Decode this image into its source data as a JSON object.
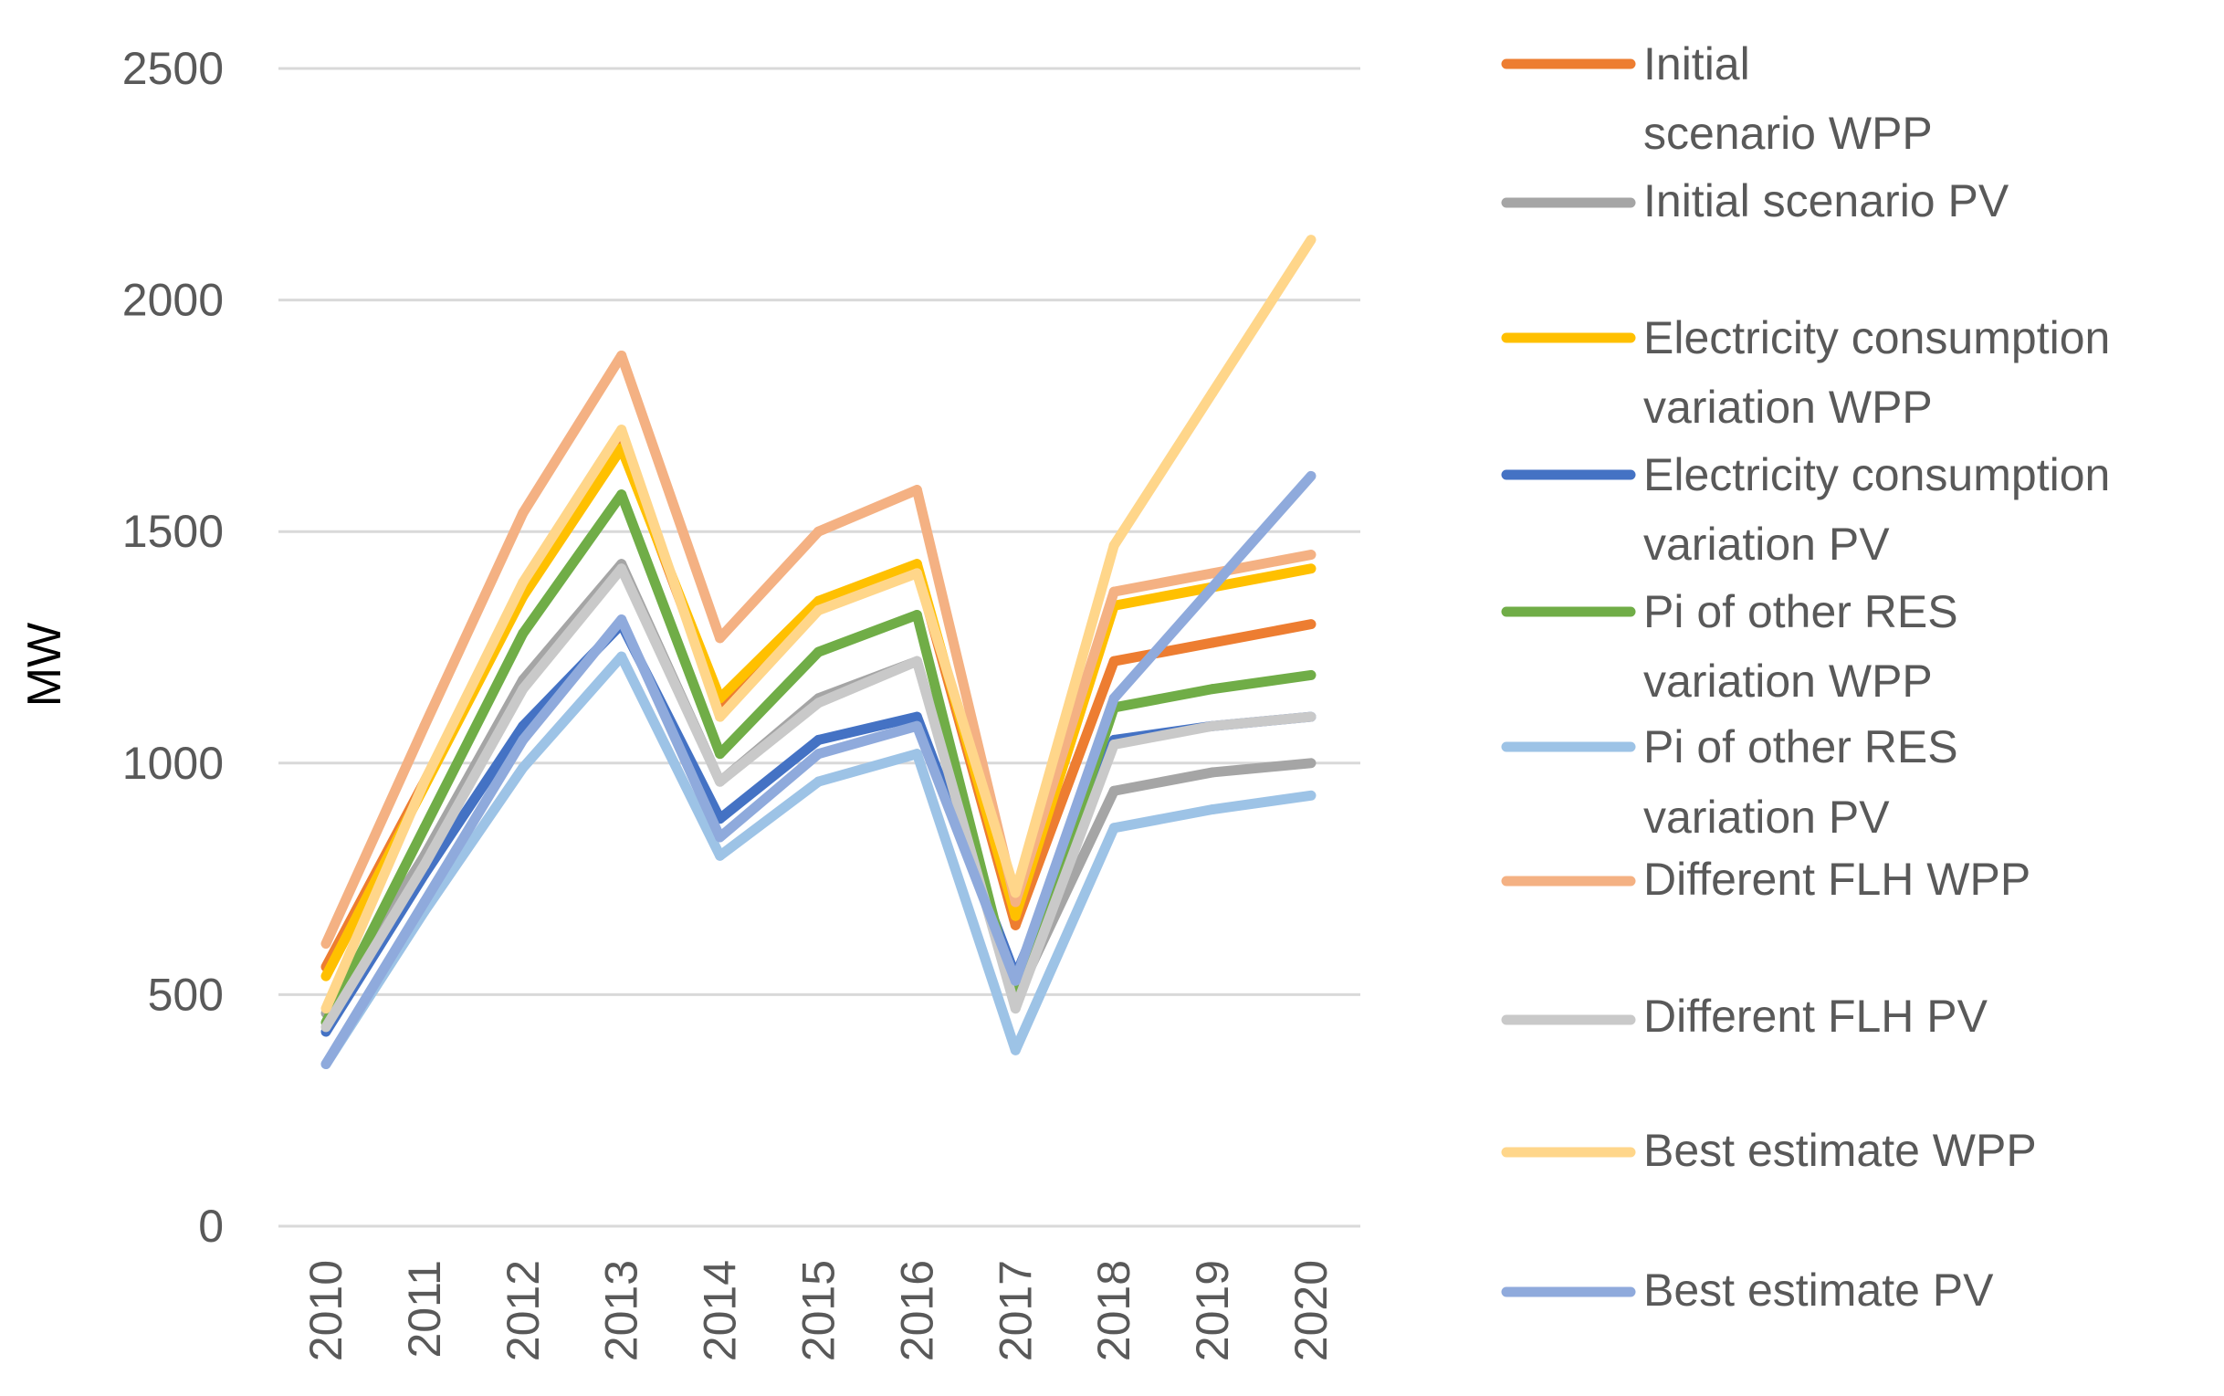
{
  "chart_data": {
    "type": "line",
    "title": "",
    "xlabel": "",
    "ylabel": "MW",
    "ylim": [
      0,
      2500
    ],
    "yticks": [
      0,
      500,
      1000,
      1500,
      2000,
      2500
    ],
    "grid": true,
    "legend_position": "right",
    "categories": [
      "2010",
      "2011",
      "2012",
      "2013",
      "2014",
      "2015",
      "2016",
      "2017",
      "2018",
      "2019",
      "2020"
    ],
    "series": [
      {
        "name": "Initial scenario WPP",
        "legend_lines": [
          "Initial",
          "scenario WPP"
        ],
        "color": "#ED7D31",
        "values": [
          560,
          960,
          1370,
          1690,
          1120,
          1340,
          1420,
          650,
          1220,
          1260,
          1300
        ]
      },
      {
        "name": "Initial scenario PV",
        "legend_lines": [
          "Initial scenario PV"
        ],
        "color": "#A5A5A5",
        "values": [
          460,
          800,
          1180,
          1430,
          960,
          1140,
          1220,
          490,
          940,
          980,
          1000
        ]
      },
      {
        "name": "Electricity consumption variation WPP",
        "legend_lines": [
          "Electricity consumption",
          "variation WPP"
        ],
        "color": "#FFC000",
        "values": [
          540,
          950,
          1360,
          1680,
          1140,
          1350,
          1430,
          670,
          1340,
          1380,
          1420
        ]
      },
      {
        "name": "Electricity consumption variation PV",
        "legend_lines": [
          "Electricity consumption",
          "variation PV"
        ],
        "color": "#4472C4",
        "values": [
          420,
          760,
          1080,
          1300,
          880,
          1050,
          1100,
          540,
          1050,
          1080,
          1100
        ]
      },
      {
        "name": "Pi of other RES variation WPP",
        "legend_lines": [
          "Pi of other RES",
          "variation WPP"
        ],
        "color": "#70AD47",
        "values": [
          440,
          860,
          1280,
          1580,
          1020,
          1240,
          1320,
          480,
          1120,
          1160,
          1190
        ]
      },
      {
        "name": "Pi of other RES variation PV",
        "legend_lines": [
          "Pi of other RES",
          "variation PV"
        ],
        "color": "#9DC3E6",
        "values": [
          350,
          680,
          990,
          1230,
          800,
          960,
          1020,
          380,
          860,
          900,
          930
        ]
      },
      {
        "name": "Different FLH WPP",
        "legend_lines": [
          "Different FLH WPP"
        ],
        "color": "#F4B183",
        "values": [
          610,
          1080,
          1540,
          1880,
          1270,
          1500,
          1590,
          700,
          1370,
          1410,
          1450
        ]
      },
      {
        "name": "Different FLH PV",
        "legend_lines": [
          "Different FLH PV"
        ],
        "color": "#C9C9C9",
        "values": [
          430,
          780,
          1160,
          1420,
          960,
          1130,
          1220,
          470,
          1040,
          1080,
          1100
        ]
      },
      {
        "name": "Best estimate WPP",
        "legend_lines": [
          "Best estimate WPP"
        ],
        "color": "#FFD68A",
        "values": [
          470,
          960,
          1390,
          1720,
          1100,
          1330,
          1410,
          720,
          1470,
          1800,
          2130
        ]
      },
      {
        "name": "Best estimate PV",
        "legend_lines": [
          "Best estimate PV"
        ],
        "color": "#8FAADC",
        "values": [
          350,
          700,
          1050,
          1310,
          840,
          1020,
          1080,
          530,
          1140,
          1380,
          1620
        ]
      }
    ]
  }
}
